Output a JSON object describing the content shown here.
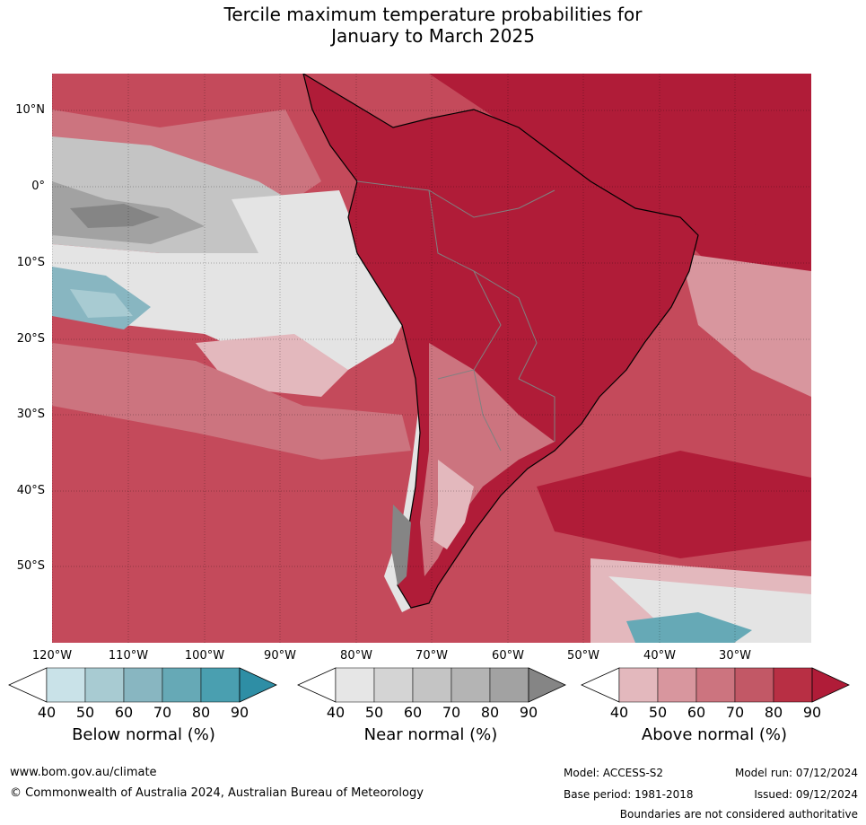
{
  "title_line1": "Tercile maximum temperature probabilities for",
  "title_line2": "January to March 2025",
  "lat_labels": [
    "10°N",
    "0°",
    "10°S",
    "20°S",
    "30°S",
    "40°S",
    "50°S"
  ],
  "lon_labels": [
    "120°W",
    "110°W",
    "100°W",
    "90°W",
    "80°W",
    "70°W",
    "60°W",
    "50°W",
    "40°W",
    "30°W"
  ],
  "colorbars": [
    {
      "label": "Below normal (%)",
      "ticks": [
        "40",
        "50",
        "60",
        "70",
        "80",
        "90"
      ],
      "colors": [
        "#ffffff",
        "#c9e2e8",
        "#a8cbd2",
        "#88b6c1",
        "#66a9b6",
        "#4a9fb0",
        "#2e8ea5"
      ]
    },
    {
      "label": "Near normal (%)",
      "ticks": [
        "40",
        "50",
        "60",
        "70",
        "80",
        "90"
      ],
      "colors": [
        "#ffffff",
        "#e6e6e6",
        "#d4d4d4",
        "#c4c4c4",
        "#b4b4b4",
        "#a2a2a2",
        "#858585"
      ]
    },
    {
      "label": "Above normal (%)",
      "ticks": [
        "40",
        "50",
        "60",
        "70",
        "80",
        "90"
      ],
      "colors": [
        "#ffffff",
        "#e3b8bd",
        "#d8969e",
        "#cc747f",
        "#c25866",
        "#b82f44",
        "#b01c38"
      ]
    }
  ],
  "footer": {
    "website": "www.bom.gov.au/climate",
    "copyright": "© Commonwealth of Australia 2024, Australian Bureau of Meteorology",
    "model": "Model: ACCESS-S2",
    "base_period": "Base period: 1981-2018",
    "model_run": "Model run: 07/12/2024",
    "issued": "Issued: 09/12/2024",
    "boundaries": "Boundaries are not considered authoritative"
  },
  "map_colors": {
    "ocean_above": "#c44a5b",
    "land_above": "#b01c38",
    "near_grey": "#b4b4b4",
    "near_light": "#e4e4e4",
    "pink": "#e3b8bd",
    "below": "#88b6c1"
  }
}
